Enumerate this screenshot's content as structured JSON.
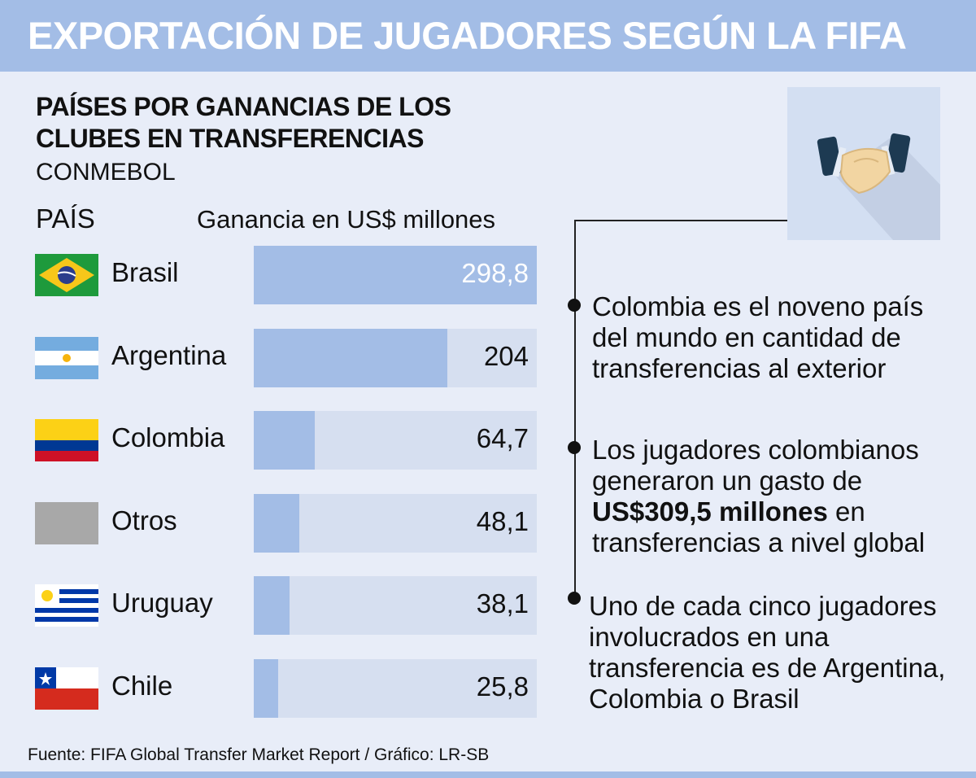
{
  "header": {
    "title": "EXPORTACIÓN DE JUGADORES SEGÚN LA FIFA"
  },
  "chart_data": {
    "type": "bar",
    "title": "PAÍSES POR GANANCIAS DE LOS CLUBES EN TRANSFERENCIAS",
    "subtitle": "CONMEBOL",
    "xlabel": "PAÍS",
    "ylabel": "Ganancia en US$ millones",
    "categories": [
      "Brasil",
      "Argentina",
      "Colombia",
      "Otros",
      "Uruguay",
      "Chile"
    ],
    "values": [
      298.8,
      204,
      64.7,
      48.1,
      38.1,
      25.8
    ],
    "value_labels": [
      "298,8",
      "204",
      "64,7",
      "48,1",
      "38,1",
      "25,8"
    ],
    "ylim": [
      0,
      298.8
    ]
  },
  "notes": [
    {
      "text": "Colombia es el noveno país del mundo en cantidad de transferencias al exterior"
    },
    {
      "before": "Los jugadores colombianos generaron un gasto de ",
      "bold": "US$309,5 millones",
      "after": " en transferencias a nivel global"
    },
    {
      "text": "Uno de cada cinco jugadores involucrados en una transferencia es de Argentina, Colombia o Brasil"
    }
  ],
  "source": "Fuente: FIFA Global Transfer Market Report  / Gráfico: LR-SB",
  "colors": {
    "header": "#a3bde6",
    "bar": "#a3bde6",
    "track": "#d6dff0",
    "background": "#e8edf8"
  }
}
